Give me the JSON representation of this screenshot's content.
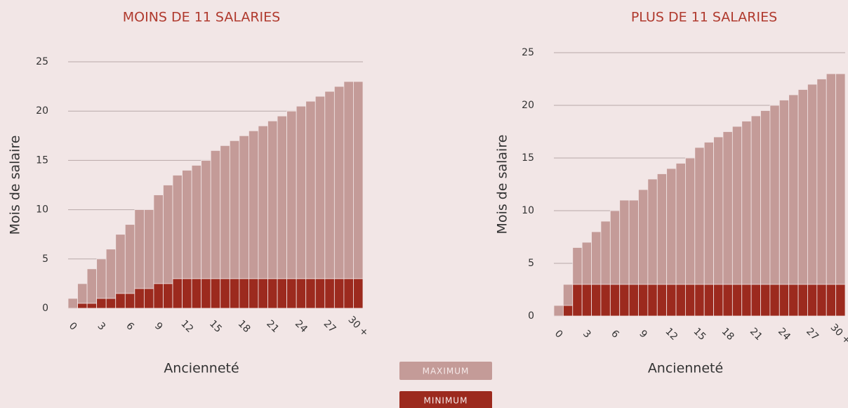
{
  "chart_data": [
    {
      "type": "bar",
      "title": "MOINS DE 11 SALARIES",
      "xlabel": "Ancienneté",
      "ylabel": "Mois de salaire",
      "categories": [
        "0",
        null,
        null,
        "3",
        null,
        null,
        "6",
        null,
        null,
        "9",
        null,
        null,
        "12",
        null,
        null,
        "15",
        null,
        null,
        "18",
        null,
        null,
        "21",
        null,
        null,
        "24",
        null,
        null,
        "27",
        null,
        null,
        "30 +"
      ],
      "series": [
        {
          "name": "MAXIMUM",
          "color": "#c49b98",
          "values": [
            1,
            2.5,
            4,
            5,
            6,
            7.5,
            8.5,
            10,
            10,
            11.5,
            12.5,
            13.5,
            14,
            14.5,
            15,
            16,
            16.5,
            17,
            17.5,
            18,
            18.5,
            19,
            19.5,
            20,
            20.5,
            21,
            21.5,
            22,
            22.5,
            23,
            23
          ]
        },
        {
          "name": "MINIMUM",
          "color": "#9c2a1e",
          "values": [
            0,
            0.5,
            0.5,
            1,
            1,
            1.5,
            1.5,
            2,
            2,
            2.5,
            2.5,
            3,
            3,
            3,
            3,
            3,
            3,
            3,
            3,
            3,
            3,
            3,
            3,
            3,
            3,
            3,
            3,
            3,
            3,
            3,
            3
          ]
        }
      ],
      "ylim": [
        0,
        25
      ],
      "yticks": [
        0,
        5,
        10,
        15,
        20,
        25
      ],
      "grid": true,
      "legend": true
    },
    {
      "type": "bar",
      "title": "PLUS DE 11 SALARIES",
      "xlabel": "Ancienneté",
      "ylabel": "Mois de salaire",
      "categories": [
        "0",
        null,
        null,
        "3",
        null,
        null,
        "6",
        null,
        null,
        "9",
        null,
        null,
        "12",
        null,
        null,
        "15",
        null,
        null,
        "18",
        null,
        null,
        "21",
        null,
        null,
        "24",
        null,
        null,
        "27",
        null,
        null,
        "30 +"
      ],
      "series": [
        {
          "name": "MAXIMUM",
          "color": "#c49b98",
          "values": [
            1,
            3,
            6.5,
            7,
            8,
            9,
            10,
            11,
            11,
            12,
            13,
            13.5,
            14,
            14.5,
            15,
            16,
            16.5,
            17,
            17.5,
            18,
            18.5,
            19,
            19.5,
            20,
            20.5,
            21,
            21.5,
            22,
            22.5,
            23,
            23
          ]
        },
        {
          "name": "MINIMUM",
          "color": "#9c2a1e",
          "values": [
            0,
            1,
            3,
            3,
            3,
            3,
            3,
            3,
            3,
            3,
            3,
            3,
            3,
            3,
            3,
            3,
            3,
            3,
            3,
            3,
            3,
            3,
            3,
            3,
            3,
            3,
            3,
            3,
            3,
            3,
            3
          ]
        }
      ],
      "ylim": [
        0,
        25
      ],
      "yticks": [
        0,
        5,
        10,
        15,
        20,
        25
      ],
      "grid": true,
      "legend": false
    }
  ]
}
